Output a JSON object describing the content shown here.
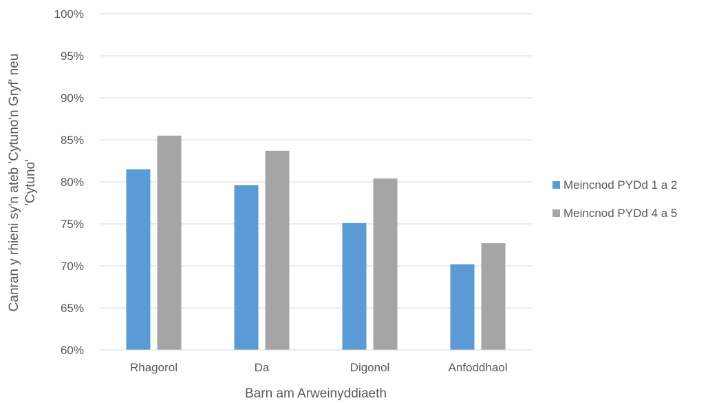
{
  "chart_data": {
    "type": "bar",
    "title": "",
    "xlabel": "Barn am Arweinyddiaeth",
    "ylabel_lines": [
      "Canran y rhieni sy'n ateb 'Cytuno'n Gryf' neu",
      "'Cytuno'"
    ],
    "categories": [
      "Rhagorol",
      "Da",
      "Digonol",
      "Anfoddhaol"
    ],
    "series": [
      {
        "name": "Meincnod PYDd 1 a 2",
        "color": "#5b9bd5",
        "values": [
          81.5,
          79.6,
          75.1,
          70.2
        ]
      },
      {
        "name": "Meincnod PYDd 4 a 5",
        "color": "#a5a5a5",
        "values": [
          85.5,
          83.7,
          80.4,
          72.7
        ]
      }
    ],
    "ylim": [
      60,
      100
    ],
    "yticks": [
      "60%",
      "65%",
      "70%",
      "75%",
      "80%",
      "85%",
      "90%",
      "95%",
      "100%"
    ],
    "grid": true,
    "legend_position": "right"
  }
}
